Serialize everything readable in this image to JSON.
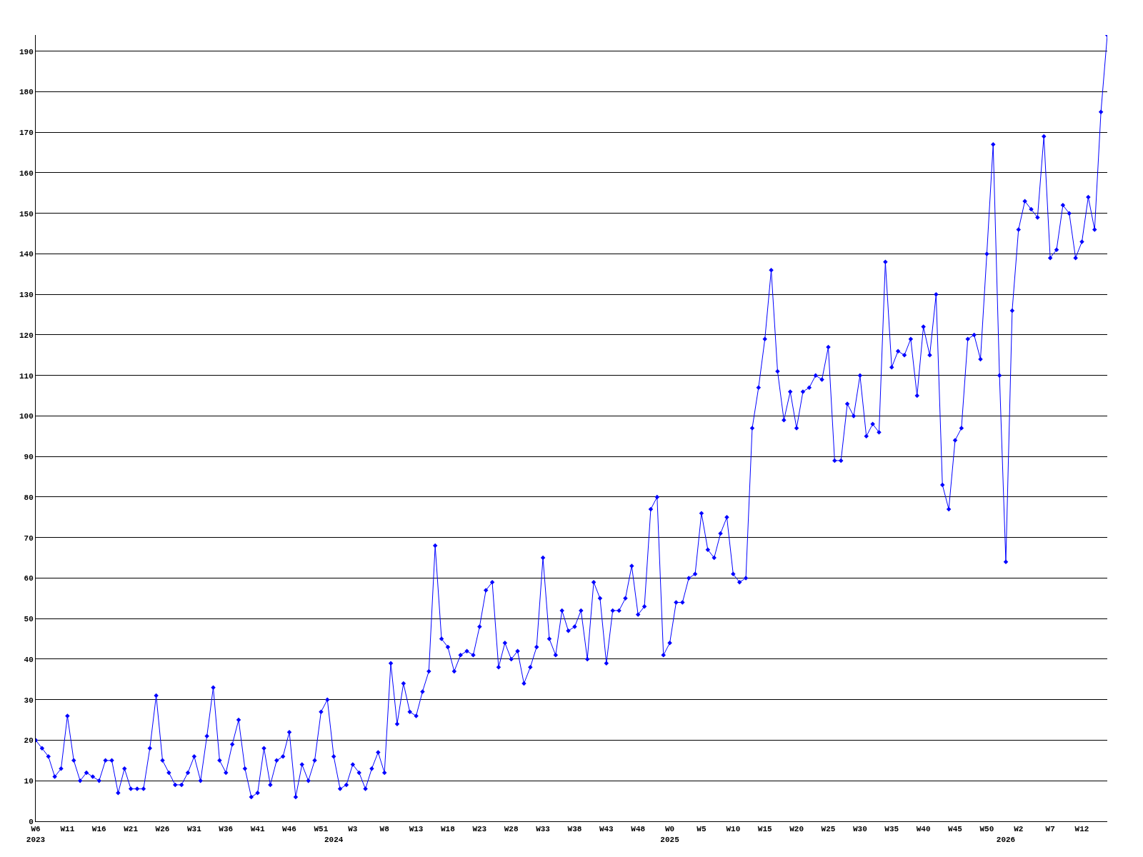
{
  "chart_data": {
    "type": "line",
    "categories": [
      "W6\n2023",
      null,
      null,
      null,
      null,
      "W11",
      null,
      null,
      null,
      null,
      "W16",
      null,
      null,
      null,
      null,
      "W21",
      null,
      null,
      null,
      null,
      "W26",
      null,
      null,
      null,
      null,
      "W31",
      null,
      null,
      null,
      null,
      "W36",
      null,
      null,
      null,
      null,
      "W41",
      null,
      null,
      null,
      null,
      "W46",
      null,
      null,
      null,
      null,
      "W51",
      null,
      "\n2024",
      null,
      null,
      "W3",
      null,
      null,
      null,
      null,
      "W8",
      null,
      null,
      null,
      null,
      "W13",
      null,
      null,
      null,
      null,
      "W18",
      null,
      null,
      null,
      null,
      "W23",
      null,
      null,
      null,
      null,
      "W28",
      null,
      null,
      null,
      null,
      "W33",
      null,
      null,
      null,
      null,
      "W38",
      null,
      null,
      null,
      null,
      "W43",
      null,
      null,
      null,
      null,
      "W48",
      null,
      null,
      null,
      null,
      "W0\n2025",
      null,
      null,
      null,
      null,
      "W5",
      null,
      null,
      null,
      null,
      "W10",
      null,
      null,
      null,
      null,
      "W15",
      null,
      null,
      null,
      null,
      "W20",
      null,
      null,
      null,
      null,
      "W25",
      null,
      null,
      null,
      null,
      "W30",
      null,
      null,
      null,
      null,
      "W35",
      null,
      null,
      null,
      null,
      "W40",
      null,
      null,
      null,
      null,
      "W45",
      null,
      null,
      null,
      null,
      "W50",
      null,
      null,
      "\n2026",
      null,
      "W2",
      null,
      null,
      null,
      null,
      "W7",
      null,
      null,
      null,
      null,
      "W12",
      null,
      null,
      null,
      null
    ],
    "series": [
      {
        "color": "#0000ff",
        "values": [
          20,
          18,
          16,
          11,
          13,
          26,
          15,
          10,
          12,
          11,
          10,
          15,
          15,
          7,
          13,
          8,
          8,
          8,
          18,
          31,
          15,
          12,
          9,
          9,
          12,
          16,
          10,
          21,
          33,
          15,
          12,
          19,
          25,
          13,
          6,
          7,
          18,
          9,
          15,
          16,
          22,
          6,
          14,
          10,
          15,
          27,
          30,
          16,
          8,
          9,
          14,
          12,
          8,
          13,
          17,
          12,
          39,
          24,
          34,
          27,
          26,
          32,
          37,
          68,
          45,
          43,
          37,
          41,
          42,
          41,
          48,
          57,
          59,
          38,
          44,
          40,
          42,
          34,
          38,
          43,
          65,
          45,
          41,
          52,
          47,
          48,
          52,
          40,
          59,
          55,
          39,
          52,
          52,
          55,
          63,
          51,
          53,
          77,
          80,
          41,
          44,
          54,
          54,
          60,
          61,
          76,
          67,
          65,
          71,
          75,
          61,
          59,
          60,
          97,
          107,
          119,
          136,
          111,
          99,
          106,
          97,
          106,
          107,
          110,
          109,
          117,
          89,
          89,
          103,
          100,
          110,
          95,
          98,
          96,
          138,
          112,
          116,
          115,
          119,
          105,
          122,
          115,
          130,
          83,
          77,
          94,
          97,
          119,
          120,
          114,
          140,
          167,
          110,
          64,
          126,
          146,
          153,
          151,
          149,
          169,
          139,
          141,
          152,
          150,
          139,
          143,
          154,
          146,
          175,
          194
        ]
      }
    ],
    "ylim": [
      0,
      194
    ],
    "yticks": [
      0,
      10,
      20,
      30,
      40,
      50,
      60,
      70,
      80,
      90,
      100,
      110,
      120,
      130,
      140,
      150,
      160,
      170,
      180,
      190
    ],
    "grid": "y",
    "marker": "diamond",
    "line_style": "solid",
    "legend": false
  }
}
